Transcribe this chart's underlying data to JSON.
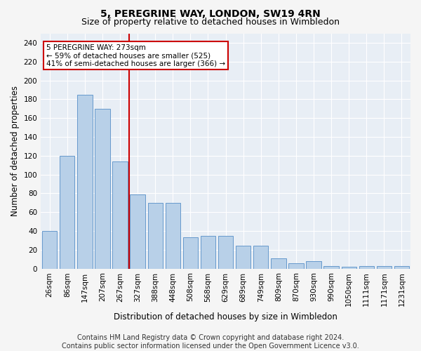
{
  "title": "5, PEREGRINE WAY, LONDON, SW19 4RN",
  "subtitle": "Size of property relative to detached houses in Wimbledon",
  "xlabel": "Distribution of detached houses by size in Wimbledon",
  "ylabel": "Number of detached properties",
  "footer_line1": "Contains HM Land Registry data © Crown copyright and database right 2024.",
  "footer_line2": "Contains public sector information licensed under the Open Government Licence v3.0.",
  "bar_labels": [
    "26sqm",
    "86sqm",
    "147sqm",
    "207sqm",
    "267sqm",
    "327sqm",
    "388sqm",
    "448sqm",
    "508sqm",
    "568sqm",
    "629sqm",
    "689sqm",
    "749sqm",
    "809sqm",
    "870sqm",
    "930sqm",
    "990sqm",
    "1050sqm",
    "1111sqm",
    "1171sqm",
    "1231sqm"
  ],
  "bar_values": [
    40,
    120,
    185,
    170,
    114,
    79,
    70,
    70,
    33,
    35,
    35,
    24,
    24,
    11,
    6,
    8,
    3,
    2,
    3,
    3,
    3
  ],
  "bar_color": "#b8d0e8",
  "bar_edge_color": "#6699cc",
  "ref_line_x": 4.5,
  "annotation_line1": "5 PEREGRINE WAY: 273sqm",
  "annotation_line2": "← 59% of detached houses are smaller (525)",
  "annotation_line3": "41% of semi-detached houses are larger (366) →",
  "annotation_box_facecolor": "#ffffff",
  "annotation_box_edgecolor": "#cc0000",
  "ref_line_color": "#cc0000",
  "ylim": [
    0,
    250
  ],
  "yticks": [
    0,
    20,
    40,
    60,
    80,
    100,
    120,
    140,
    160,
    180,
    200,
    220,
    240
  ],
  "plot_bg_color": "#e8eef5",
  "fig_bg_color": "#f5f5f5",
  "grid_color": "#ffffff",
  "title_fontsize": 10,
  "subtitle_fontsize": 9,
  "axis_label_fontsize": 8.5,
  "tick_fontsize": 7.5,
  "annotation_fontsize": 7.5,
  "footer_fontsize": 7
}
